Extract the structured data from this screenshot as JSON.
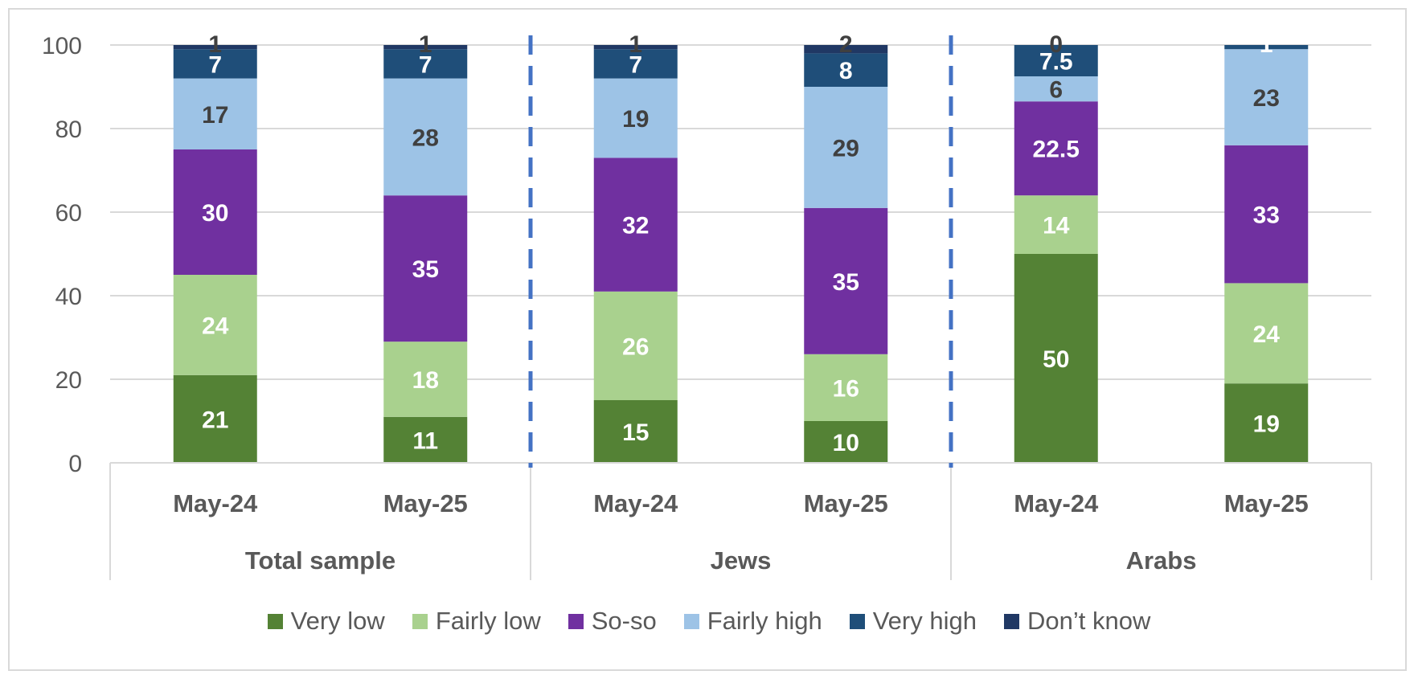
{
  "chart_data": {
    "type": "bar",
    "stacked": true,
    "title": "",
    "xlabel": "",
    "ylabel": "",
    "ylim": [
      0,
      100
    ],
    "yticks": [
      0,
      20,
      40,
      60,
      80,
      100
    ],
    "grid": true,
    "legend_position": "bottom",
    "groups": [
      "Total sample",
      "Jews",
      "Arabs"
    ],
    "categories": [
      "May-24",
      "May-25",
      "May-24",
      "May-25",
      "May-24",
      "May-25"
    ],
    "category_group": [
      0,
      0,
      1,
      1,
      2,
      2
    ],
    "series": [
      {
        "name": "Very low",
        "color": "#548235",
        "label_color": "#ffffff",
        "values": [
          21,
          11,
          15,
          10,
          50,
          19
        ]
      },
      {
        "name": "Fairly low",
        "color": "#a9d18e",
        "label_color": "#ffffff",
        "values": [
          24,
          18,
          26,
          16,
          14,
          24
        ]
      },
      {
        "name": "So-so",
        "color": "#7030a0",
        "label_color": "#ffffff",
        "values": [
          30,
          35,
          32,
          35,
          22.5,
          33
        ]
      },
      {
        "name": "Fairly high",
        "color": "#9dc3e6",
        "label_color": "#404040",
        "values": [
          17,
          28,
          19,
          29,
          6,
          23
        ]
      },
      {
        "name": "Very high",
        "color": "#1f4e79",
        "label_color": "#ffffff",
        "values": [
          7,
          7,
          7,
          8,
          7.5,
          1
        ]
      },
      {
        "name": "Don’t know",
        "color": "#203864",
        "label_color": "#404040",
        "values": [
          1,
          1,
          1,
          2,
          0,
          0
        ]
      }
    ],
    "data_labels": [
      [
        "21",
        "11",
        "15",
        "10",
        "50",
        "19"
      ],
      [
        "24",
        "18",
        "26",
        "16",
        "14",
        "24"
      ],
      [
        "30",
        "35",
        "32",
        "35",
        "22.5",
        "33"
      ],
      [
        "17",
        "28",
        "19",
        "29",
        "6",
        "23"
      ],
      [
        "7",
        "7",
        "7",
        "8",
        "7.5",
        "1"
      ],
      [
        "1",
        "1",
        "1",
        "2",
        "0",
        ""
      ]
    ]
  }
}
